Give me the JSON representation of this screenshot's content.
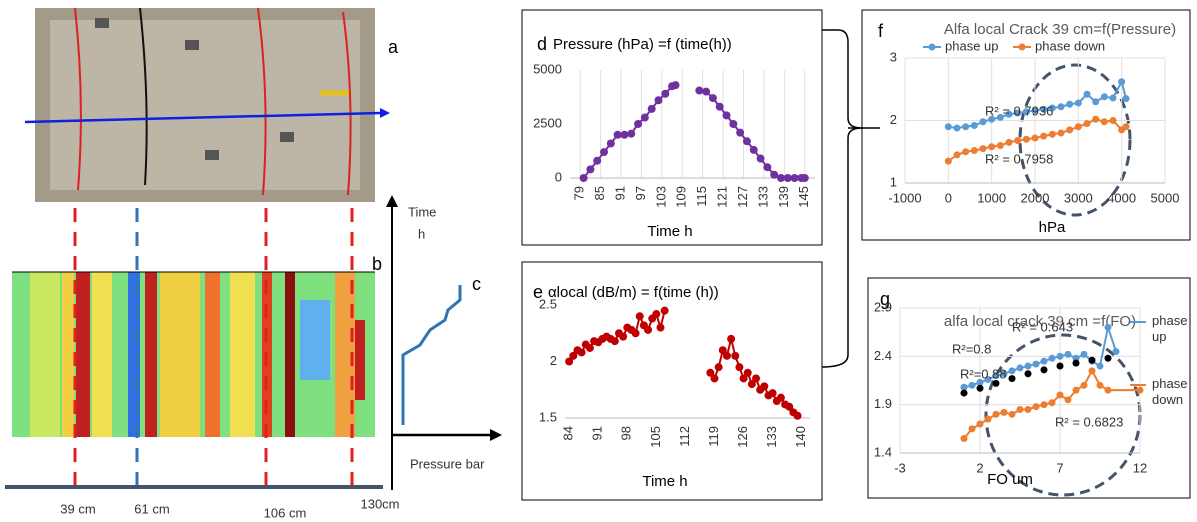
{
  "labels": {
    "a": "a",
    "b": "b",
    "c": "c",
    "time": "Time",
    "time_unit": "h",
    "pressure": "Pressure bar",
    "positions": [
      "39 cm",
      "61 cm",
      "106 cm",
      "130cm"
    ]
  },
  "chart_data": [
    {
      "type": "line",
      "panel": "d",
      "title": "Pressure (hPa) =f (time(h))",
      "x_label": "Time h",
      "xlim": [
        76,
        148
      ],
      "xticks": [
        79,
        85,
        91,
        97,
        103,
        109,
        115,
        121,
        127,
        133,
        139,
        145
      ],
      "ylim": [
        0,
        5000
      ],
      "yticks": [
        0,
        2500,
        5000
      ],
      "grid": "x",
      "series": [
        {
          "color": "#7030a0",
          "x": [
            80,
            82,
            84,
            86,
            88,
            90,
            92,
            94,
            96,
            98,
            100,
            102,
            104,
            106,
            107,
            111,
            114,
            116,
            118,
            120,
            122,
            124,
            126,
            128,
            130,
            132,
            134,
            136,
            138,
            140,
            142,
            144,
            145
          ],
          "values": [
            0,
            400,
            800,
            1200,
            1600,
            2000,
            2000,
            2050,
            2500,
            2800,
            3200,
            3600,
            3900,
            4250,
            4300,
            null,
            4050,
            4000,
            3700,
            3300,
            2900,
            2500,
            2100,
            1700,
            1300,
            900,
            500,
            150,
            0,
            0,
            0,
            0,
            0
          ]
        }
      ]
    },
    {
      "type": "line",
      "panel": "e",
      "title": "αlocal (dB/m) = f(time (h))",
      "x_label": "Time h",
      "xlim": [
        83,
        142
      ],
      "xticks": [
        84,
        91,
        98,
        105,
        112,
        119,
        126,
        133,
        140
      ],
      "ylim": [
        1.5,
        2.5
      ],
      "yticks": [
        1.5,
        2,
        2.5
      ],
      "grid": false,
      "series": [
        {
          "color": "#c00000",
          "x": [
            84,
            85,
            86,
            87,
            88,
            89,
            90,
            91,
            92,
            93,
            94,
            95,
            96,
            97,
            98,
            99,
            100,
            101,
            102,
            103,
            104,
            105,
            106,
            107,
            110,
            118,
            119,
            120,
            121,
            122,
            123,
            124,
            125,
            126,
            127,
            128,
            129,
            130,
            131,
            132,
            133,
            134,
            135,
            136,
            137,
            138,
            139
          ],
          "values": [
            2.0,
            2.05,
            2.1,
            2.08,
            2.15,
            2.12,
            2.18,
            2.17,
            2.2,
            2.22,
            2.2,
            2.18,
            2.25,
            2.22,
            2.3,
            2.28,
            2.25,
            2.4,
            2.32,
            2.28,
            2.38,
            2.42,
            2.3,
            2.45,
            null,
            1.9,
            1.85,
            1.95,
            2.1,
            2.05,
            2.2,
            2.05,
            1.95,
            1.85,
            1.9,
            1.8,
            1.85,
            1.75,
            1.78,
            1.7,
            1.72,
            1.65,
            1.68,
            1.62,
            1.6,
            1.55,
            1.52
          ]
        }
      ]
    },
    {
      "type": "line",
      "panel": "f",
      "title": "Alfa local Crack 39 cm=f(Pressure)",
      "x_label": "hPa",
      "xlim": [
        -1000,
        5000
      ],
      "xticks": [
        -1000,
        0,
        1000,
        2000,
        3000,
        4000,
        5000
      ],
      "ylim": [
        1,
        3
      ],
      "yticks": [
        1,
        2,
        3
      ],
      "grid": "both",
      "annotations": [
        "R² = 0.7936",
        "R² = 0.7958"
      ],
      "series": [
        {
          "name": "phase up",
          "color": "#5b9bd5",
          "x": [
            0,
            200,
            400,
            600,
            800,
            1000,
            1200,
            1400,
            1600,
            1800,
            2000,
            2200,
            2400,
            2600,
            2800,
            3000,
            3200,
            3400,
            3600,
            3800,
            4000,
            4100
          ],
          "values": [
            1.9,
            1.88,
            1.9,
            1.92,
            1.98,
            2.02,
            2.05,
            2.1,
            2.12,
            2.14,
            2.16,
            2.18,
            2.2,
            2.22,
            2.26,
            2.28,
            2.42,
            2.3,
            2.38,
            2.36,
            2.62,
            2.35
          ]
        },
        {
          "name": "phase down",
          "color": "#ed7d31",
          "x": [
            0,
            200,
            400,
            600,
            800,
            1000,
            1200,
            1400,
            1600,
            1800,
            2000,
            2200,
            2400,
            2600,
            2800,
            3000,
            3200,
            3400,
            3600,
            3800,
            4000,
            4100
          ],
          "values": [
            1.35,
            1.45,
            1.5,
            1.52,
            1.55,
            1.58,
            1.6,
            1.65,
            1.68,
            1.7,
            1.72,
            1.75,
            1.78,
            1.8,
            1.85,
            1.9,
            1.95,
            2.02,
            1.98,
            2.0,
            1.85,
            1.9
          ]
        }
      ]
    },
    {
      "type": "line",
      "panel": "g",
      "title": "alfa local crack 39 cm =f(FO)",
      "x_label": "FO um",
      "xlim": [
        -3,
        12
      ],
      "xticks": [
        -3,
        2,
        7,
        12
      ],
      "ylim": [
        1.4,
        2.9
      ],
      "yticks": [
        1.4,
        1.9,
        2.4,
        2.9
      ],
      "grid": "both",
      "annotations": [
        "R²=0.8",
        "R² = 0.643",
        "R²=0.88",
        "R² = 0.6823"
      ],
      "series": [
        {
          "name": "phase up",
          "color": "#5b9bd5",
          "x": [
            1,
            1.5,
            2,
            2.5,
            3,
            3.5,
            4,
            4.5,
            5,
            5.5,
            6,
            6.5,
            7,
            7.5,
            8,
            8.5,
            9,
            9.5,
            10,
            10.5
          ],
          "values": [
            2.08,
            2.1,
            2.13,
            2.16,
            2.2,
            2.22,
            2.25,
            2.28,
            2.3,
            2.32,
            2.35,
            2.38,
            2.4,
            2.42,
            2.38,
            2.42,
            2.35,
            2.3,
            2.7,
            2.45
          ]
        },
        {
          "name": "phase down",
          "color": "#ed7d31",
          "x": [
            1,
            1.5,
            2,
            2.5,
            3,
            3.5,
            4,
            4.5,
            5,
            5.5,
            6,
            6.5,
            7,
            7.5,
            8,
            8.5,
            9,
            9.5,
            10,
            12
          ],
          "values": [
            1.55,
            1.65,
            1.7,
            1.75,
            1.8,
            1.82,
            1.8,
            1.85,
            1.85,
            1.88,
            1.9,
            1.92,
            2.0,
            1.95,
            2.05,
            2.1,
            2.25,
            2.1,
            2.05,
            2.05
          ]
        },
        {
          "color": "#000000",
          "line": false,
          "x": [
            1,
            2,
            3,
            4,
            5,
            6,
            7,
            8,
            9,
            10
          ],
          "values": [
            2.02,
            2.07,
            2.12,
            2.17,
            2.22,
            2.26,
            2.3,
            2.33,
            2.36,
            2.38
          ]
        }
      ]
    }
  ]
}
